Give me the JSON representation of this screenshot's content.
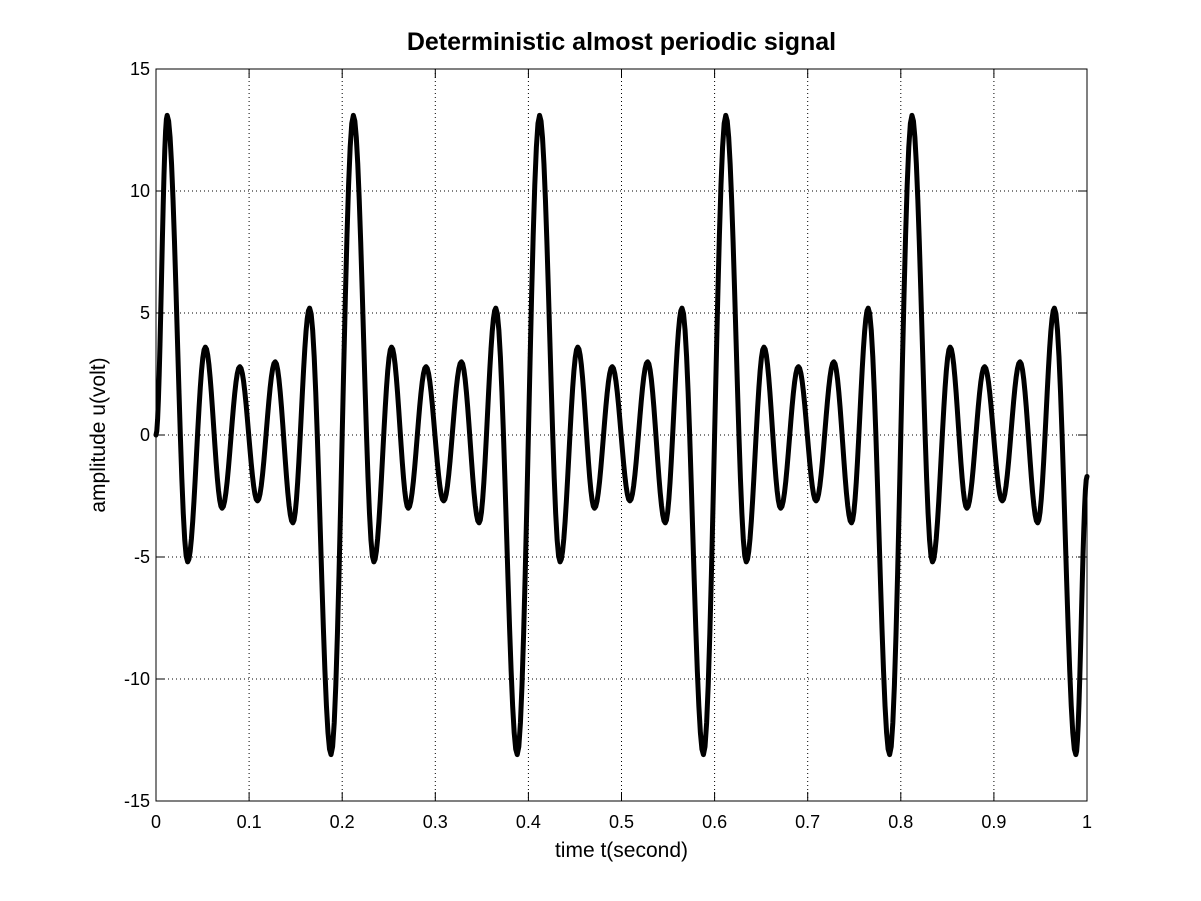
{
  "chart_data": {
    "type": "line",
    "title": "Deterministic almost periodic signal",
    "xlabel": "time t(second)",
    "ylabel": "amplitude u(volt)",
    "xlim": [
      0,
      1
    ],
    "ylim": [
      -15,
      15
    ],
    "xticks": [
      0,
      0.1,
      0.2,
      0.3,
      0.4,
      0.5,
      0.6,
      0.7,
      0.8,
      0.9,
      1
    ],
    "xtick_labels": [
      "0",
      "0.1",
      "0.2",
      "0.3",
      "0.4",
      "0.5",
      "0.6",
      "0.7",
      "0.8",
      "0.9",
      "1"
    ],
    "yticks": [
      -15,
      -10,
      -5,
      0,
      5,
      10,
      15
    ],
    "ytick_labels": [
      "-15",
      "-10",
      "-5",
      "0",
      "5",
      "10",
      "15"
    ],
    "grid": true,
    "line_color": "#000000",
    "series": [
      {
        "x": [
          0,
          0.012,
          0.034,
          0.053,
          0.071,
          0.09,
          0.109,
          0.128,
          0.147,
          0.165,
          0.188,
          0.212,
          0.234,
          0.253,
          0.271,
          0.29,
          0.309,
          0.328,
          0.347,
          0.365,
          0.388,
          0.412,
          0.434,
          0.453,
          0.471,
          0.49,
          0.509,
          0.528,
          0.547,
          0.565,
          0.588,
          0.612,
          0.634,
          0.653,
          0.671,
          0.69,
          0.709,
          0.728,
          0.747,
          0.765,
          0.788,
          0.812,
          0.834,
          0.853,
          0.871,
          0.89,
          0.909,
          0.928,
          0.947,
          0.965,
          0.988,
          1.0
        ],
        "y": [
          0,
          13.1,
          -5.2,
          3.6,
          -3.0,
          2.8,
          -2.7,
          3.0,
          -3.6,
          5.2,
          -13.1,
          13.1,
          -5.2,
          3.6,
          -3.0,
          2.8,
          -2.7,
          3.0,
          -3.6,
          5.2,
          -13.1,
          13.1,
          -5.2,
          3.6,
          -3.0,
          2.8,
          -2.7,
          3.0,
          -3.6,
          5.2,
          -13.1,
          13.1,
          -5.2,
          3.6,
          -3.0,
          2.8,
          -2.7,
          3.0,
          -3.6,
          5.2,
          -13.1,
          13.1,
          -5.2,
          3.6,
          -3.0,
          2.8,
          -2.7,
          3.0,
          -3.6,
          5.2,
          -13.1,
          -1.7
        ]
      }
    ]
  }
}
